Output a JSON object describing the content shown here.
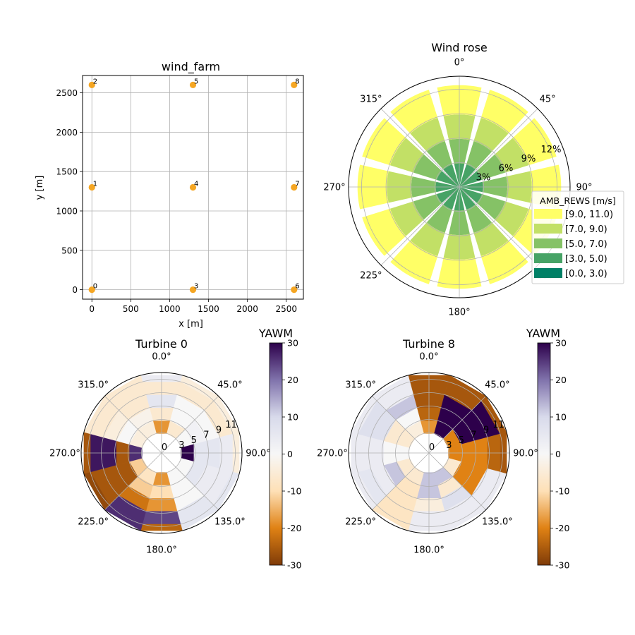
{
  "colors": {
    "turbine_marker": "#f5a623",
    "grid": "#b0b0b0",
    "rose_bins": [
      "#ffff66",
      "#c2e066",
      "#85c266",
      "#47a366",
      "#008066"
    ],
    "yaw_cmap": [
      "#7f3b08",
      "#e08214",
      "#fee0b6",
      "#f7f7f7",
      "#d8daeb",
      "#8073ac",
      "#2d004b"
    ]
  },
  "chart_data": [
    {
      "type": "scatter",
      "title": "wind_farm",
      "xlabel": "x [m]",
      "ylabel": "y [m]",
      "xlim": [
        -120,
        2720
      ],
      "ylim": [
        -120,
        2720
      ],
      "xticks": [
        0,
        500,
        1000,
        1500,
        2000,
        2500
      ],
      "yticks": [
        0,
        500,
        1000,
        1500,
        2000,
        2500
      ],
      "grid": true,
      "points": [
        {
          "label": "0",
          "x": 0,
          "y": 0
        },
        {
          "label": "1",
          "x": 0,
          "y": 1300
        },
        {
          "label": "2",
          "x": 0,
          "y": 2600
        },
        {
          "label": "3",
          "x": 1300,
          "y": 0
        },
        {
          "label": "4",
          "x": 1300,
          "y": 1300
        },
        {
          "label": "5",
          "x": 1300,
          "y": 2600
        },
        {
          "label": "6",
          "x": 2600,
          "y": 0
        },
        {
          "label": "7",
          "x": 2600,
          "y": 1300
        },
        {
          "label": "8",
          "x": 2600,
          "y": 2600
        }
      ]
    },
    {
      "type": "bar",
      "subtype": "polar-stacked",
      "title": "Wind rose",
      "angle_ticks": [
        "0°",
        "45°",
        "90°",
        "135°",
        "180°",
        "225°",
        "270°",
        "315°"
      ],
      "radial_ticks": [
        "3%",
        "6%",
        "9%",
        "12%"
      ],
      "radial_max": 13.6,
      "directions": [
        0,
        30,
        60,
        90,
        120,
        150,
        180,
        210,
        240,
        270,
        300,
        330
      ],
      "legend_title": "AMB_REWS [m/s]",
      "legend_position": "right",
      "series": [
        {
          "name": "[0.0, 3.0)",
          "values": [
            0,
            0,
            0,
            0,
            0,
            0,
            0,
            0,
            0,
            0,
            0,
            0
          ]
        },
        {
          "name": "[3.0, 5.0)",
          "values": [
            2.9,
            2.9,
            2.9,
            2.9,
            2.9,
            2.9,
            2.9,
            2.9,
            2.9,
            2.9,
            2.9,
            2.9
          ]
        },
        {
          "name": "[5.0, 7.0)",
          "values": [
            3.0,
            3.0,
            3.0,
            3.0,
            3.0,
            3.0,
            3.0,
            3.0,
            3.0,
            3.0,
            3.0,
            3.0
          ]
        },
        {
          "name": "[7.0, 9.0)",
          "values": [
            3.0,
            3.0,
            3.0,
            3.0,
            3.0,
            3.0,
            3.0,
            3.0,
            3.0,
            3.0,
            3.0,
            3.0
          ]
        },
        {
          "name": "[9.0, 11.0)",
          "values": [
            3.6,
            3.6,
            3.6,
            3.6,
            3.6,
            3.6,
            3.6,
            3.6,
            3.6,
            3.6,
            3.6,
            3.6
          ]
        }
      ]
    },
    {
      "type": "heatmap",
      "subtype": "polar",
      "title": "Turbine 0",
      "colorbar_label": "YAWM",
      "colorbar_ticks": [
        30,
        20,
        10,
        0,
        -10,
        -20,
        -30
      ],
      "vmin": -30,
      "vmax": 30,
      "angle_ticks": [
        "0.0°",
        "45.0°",
        "90.0°",
        "135.0°",
        "180.0°",
        "225.0°",
        "270.0°",
        "315.0°"
      ],
      "radial_ticks": [
        "0",
        "3",
        "5",
        "7",
        "9",
        "11"
      ],
      "radial_min": 0,
      "radial_max": 12,
      "speed_bins": [
        [
          3,
          5
        ],
        [
          5,
          7
        ],
        [
          7,
          9
        ],
        [
          9,
          11
        ],
        [
          11,
          12
        ]
      ],
      "direction_bin_width": 30,
      "directions": [
        0,
        30,
        60,
        90,
        120,
        150,
        180,
        210,
        240,
        270,
        300,
        330
      ],
      "values": [
        [
          -18,
          -6,
          0,
          30,
          0,
          0,
          -18,
          -8,
          -12,
          26,
          -4,
          -4
        ],
        [
          -6,
          0,
          2,
          6,
          6,
          0,
          -10,
          -12,
          -26,
          -26,
          0,
          -2
        ],
        [
          6,
          0,
          0,
          6,
          4,
          0,
          -18,
          -22,
          -26,
          28,
          -4,
          -6
        ],
        [
          -6,
          -6,
          -6,
          4,
          4,
          6,
          24,
          26,
          -26,
          28,
          -6,
          -6
        ],
        [
          4,
          -4,
          -4,
          -4,
          6,
          6,
          -24,
          26,
          -28,
          -26,
          -6,
          -6
        ]
      ]
    },
    {
      "type": "heatmap",
      "subtype": "polar",
      "title": "Turbine 8",
      "colorbar_label": "YAWM",
      "colorbar_ticks": [
        30,
        20,
        10,
        0,
        -10,
        -20,
        -30
      ],
      "vmin": -30,
      "vmax": 30,
      "angle_ticks": [
        "0.0°",
        "45.0°",
        "90.0°",
        "135.0°",
        "180.0°",
        "225.0°",
        "270.0°",
        "315.0°"
      ],
      "radial_ticks": [
        "0",
        "3",
        "5",
        "7",
        "9",
        "11"
      ],
      "radial_min": 0,
      "radial_max": 12,
      "speed_bins": [
        [
          3,
          5
        ],
        [
          5,
          7
        ],
        [
          7,
          9
        ],
        [
          9,
          11
        ],
        [
          11,
          12
        ]
      ],
      "direction_bin_width": 30,
      "directions": [
        0,
        30,
        60,
        90,
        120,
        150,
        180,
        210,
        240,
        270,
        300,
        330
      ],
      "values": [
        [
          -18,
          30,
          -20,
          -20,
          -6,
          12,
          12,
          -6,
          -6,
          0,
          -6,
          -4
        ],
        [
          -24,
          30,
          30,
          -20,
          -20,
          -6,
          12,
          -8,
          12,
          0,
          -6,
          0
        ],
        [
          -26,
          30,
          30,
          -20,
          -20,
          8,
          -4,
          -8,
          4,
          4,
          8,
          12
        ],
        [
          -26,
          -26,
          30,
          -24,
          4,
          4,
          4,
          -8,
          6,
          4,
          8,
          4
        ],
        [
          -26,
          -26,
          -26,
          -26,
          4,
          4,
          4,
          -8,
          4,
          4,
          4,
          4
        ]
      ]
    }
  ]
}
